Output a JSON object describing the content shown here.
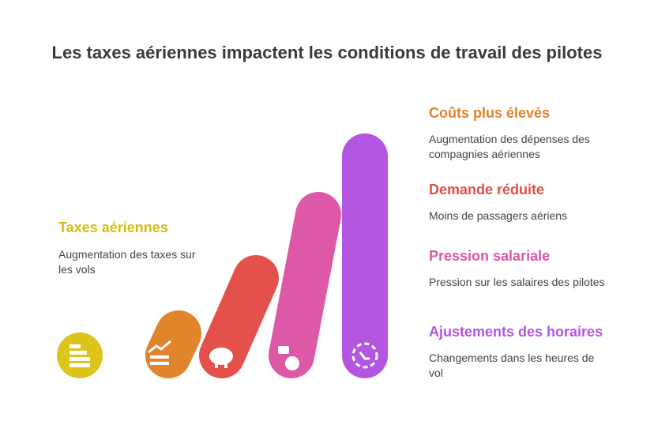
{
  "header": {
    "title": "Les taxes aériennes impactent les conditions de travail des pilotes"
  },
  "source": {
    "title": "Taxes aériennes",
    "description": "Augmentation des taxes sur les vols"
  },
  "effects": [
    {
      "title": "Coûts plus élevés",
      "description": "Augmentation des dépenses des compagnies aériennes"
    },
    {
      "title": "Demande réduite",
      "description": "Moins de passagers aériens"
    },
    {
      "title": "Pression salariale",
      "description": "Pression sur les salaires des pilotes"
    },
    {
      "title": "Ajustements des horaires",
      "description": "Changements dans les heures de vol"
    }
  ]
}
